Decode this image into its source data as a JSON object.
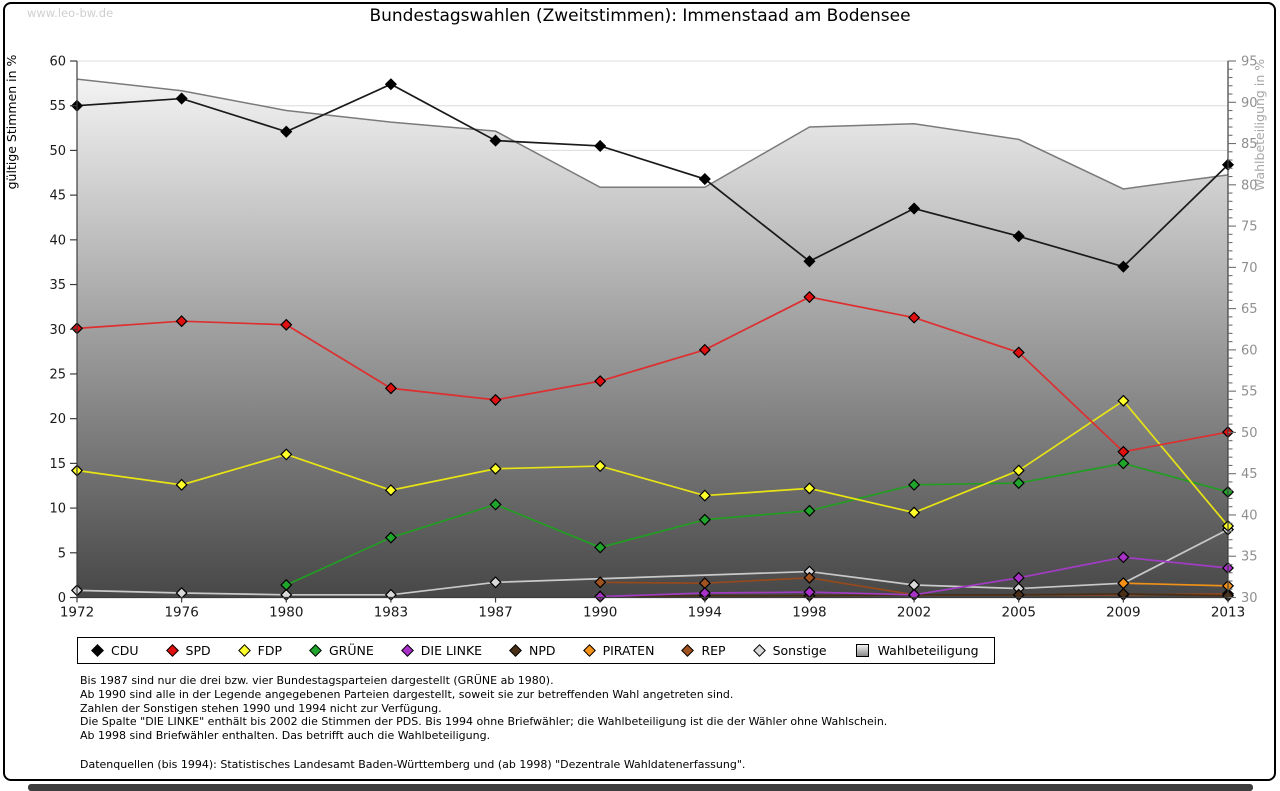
{
  "watermark": "www.leo-bw.de",
  "title": "Bundestagswahlen (Zweitstimmen): Immenstaad am Bodensee",
  "chart_data": {
    "type": "line",
    "title": "Bundestagswahlen (Zweitstimmen): Immenstaad am Bodensee",
    "x_categories": [
      "1972",
      "1976",
      "1980",
      "1983",
      "1987",
      "1990",
      "1994",
      "1998",
      "2002",
      "2005",
      "2009",
      "2013"
    ],
    "left_axis": {
      "label": "gültige Stimmen in %",
      "min": 0,
      "max": 60,
      "tick_step": 5
    },
    "right_axis": {
      "label": "Wahlbeteiligung in %",
      "min": 30,
      "max": 95,
      "tick_step": 5,
      "minor_step": 1
    },
    "grid": true,
    "legend_position": "bottom",
    "series": [
      {
        "name": "CDU",
        "marker": "diamond",
        "axis": "left",
        "color": "#000000",
        "line": "#1a1a1a",
        "values": [
          55.0,
          55.8,
          52.1,
          57.4,
          51.1,
          50.5,
          46.8,
          37.6,
          43.5,
          40.4,
          37.0,
          48.4
        ]
      },
      {
        "name": "SPD",
        "marker": "diamond",
        "axis": "left",
        "color": "#e01010",
        "line": "#dd2f2f",
        "values": [
          30.1,
          30.9,
          30.5,
          23.4,
          22.1,
          24.2,
          27.7,
          33.6,
          31.3,
          27.4,
          16.3,
          18.5
        ]
      },
      {
        "name": "FDP",
        "marker": "diamond",
        "axis": "left",
        "color": "#ffff29",
        "line": "#e8e414",
        "values": [
          14.2,
          12.6,
          16.0,
          12.0,
          14.4,
          14.7,
          11.4,
          12.2,
          9.5,
          14.2,
          22.0,
          8.0
        ]
      },
      {
        "name": "GRÜNE",
        "marker": "diamond",
        "axis": "left",
        "color": "#1fa52c",
        "line": "#219e21",
        "values": [
          null,
          null,
          1.4,
          6.7,
          10.4,
          5.6,
          8.7,
          9.7,
          12.6,
          12.8,
          15.0,
          11.8
        ]
      },
      {
        "name": "DIE LINKE",
        "marker": "diamond",
        "axis": "left",
        "color": "#a832c8",
        "line": "#a13cc4",
        "values": [
          null,
          null,
          null,
          null,
          null,
          0.1,
          0.5,
          0.6,
          0.3,
          2.2,
          4.5,
          3.3
        ]
      },
      {
        "name": "NPD",
        "marker": "diamond",
        "axis": "left",
        "color": "#4a2f17",
        "line": "#4a2f17",
        "values": [
          null,
          null,
          null,
          null,
          null,
          0.1,
          0.2,
          0.2,
          0.3,
          0.3,
          0.4,
          0.2
        ]
      },
      {
        "name": "PIRATEN",
        "marker": "diamond",
        "axis": "left",
        "color": "#f59118",
        "line": "#ef9018",
        "values": [
          null,
          null,
          null,
          null,
          null,
          null,
          null,
          null,
          null,
          null,
          1.6,
          1.3
        ]
      },
      {
        "name": "REP",
        "marker": "diamond",
        "axis": "left",
        "color": "#a0521f",
        "line": "#96491c",
        "values": [
          null,
          null,
          null,
          null,
          null,
          1.7,
          1.6,
          2.2,
          0.3,
          0.3,
          0.3,
          0.4
        ]
      },
      {
        "name": "Sonstige",
        "marker": "diamond",
        "axis": "left",
        "color": "#d9d9d9",
        "line": "#c9c9c9",
        "values": [
          0.8,
          0.5,
          0.3,
          0.3,
          1.7,
          null,
          null,
          2.9,
          1.4,
          1.0,
          1.6,
          7.6
        ]
      },
      {
        "name": "Wahlbeteiligung",
        "marker": "square",
        "axis": "right",
        "area": true,
        "color": "#c9c9c9",
        "line": "#7a7a7a",
        "values": [
          92.8,
          91.4,
          89.0,
          87.6,
          86.5,
          79.7,
          79.7,
          87.0,
          87.4,
          85.5,
          79.5,
          81.2
        ]
      }
    ]
  },
  "footnotes": [
    "Bis 1987 sind nur die drei bzw. vier Bundestagsparteien dargestellt (GRÜNE ab 1980).",
    "Ab 1990 sind alle in der Legende angegebenen Parteien dargestellt, soweit sie zur betreffenden Wahl angetreten sind.",
    "Zahlen der Sonstigen stehen 1990 und 1994 nicht zur Verfügung.",
    "Die Spalte \"DIE LINKE\" enthält bis 2002 die Stimmen der PDS. Bis 1994 ohne Briefwähler; die Wahlbeteiligung ist die der Wähler ohne Wahlschein.",
    "Ab 1998 sind Briefwähler enthalten. Das betrifft auch die Wahlbeteiligung."
  ],
  "source_line": "Datenquellen (bis 1994): Statistisches Landesamt Baden-Württemberg und (ab 1998) \"Dezentrale Wahldatenerfassung\"."
}
